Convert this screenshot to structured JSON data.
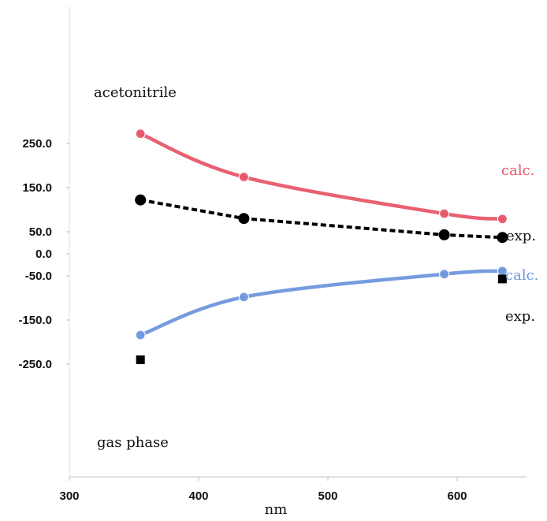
{
  "chart_data": {
    "type": "line",
    "xlabel": "nm",
    "ylabel": "",
    "xlim": [
      300,
      650
    ],
    "ylim": [
      -250,
      270
    ],
    "x_ticks": [
      "300",
      "400",
      "500",
      "600"
    ],
    "x_tick_values": [
      300,
      400,
      500,
      600
    ],
    "y_ticks": [
      "250.0",
      "150.0",
      "50.0",
      "0.0",
      "-50.0",
      "-150.0",
      "-250.0"
    ],
    "y_tick_values": [
      250,
      150,
      50,
      0,
      -50,
      -150,
      -250
    ],
    "grid": false,
    "series": [
      {
        "name": "calc.",
        "group": "acetonitrile",
        "color": "#e8576a",
        "style": "solid-smooth",
        "x": [
          355,
          435,
          590,
          635
        ],
        "y": [
          272,
          174,
          91,
          79
        ]
      },
      {
        "name": "exp.",
        "group": "acetonitrile",
        "color": "#000000",
        "style": "dashed",
        "x": [
          355,
          435,
          590,
          635
        ],
        "y": [
          122,
          80,
          43,
          37
        ]
      },
      {
        "name": "calc.",
        "group": "gas phase",
        "color": "#6f97dd",
        "style": "solid-smooth",
        "x": [
          355,
          435,
          590,
          635
        ],
        "y": [
          -184,
          -98,
          -46,
          -39
        ]
      },
      {
        "name": "exp.",
        "group": "gas phase",
        "color": "#000000",
        "style": "square-markers",
        "x": [
          355,
          635
        ],
        "y": [
          -240,
          -57
        ]
      }
    ],
    "annotations": {
      "acetonitrile": "acetonitrile",
      "gas_phase": "gas phase",
      "ace_calc": "calc.",
      "ace_exp": "exp.",
      "gas_calc": "calc.",
      "gas_exp": "exp."
    }
  }
}
